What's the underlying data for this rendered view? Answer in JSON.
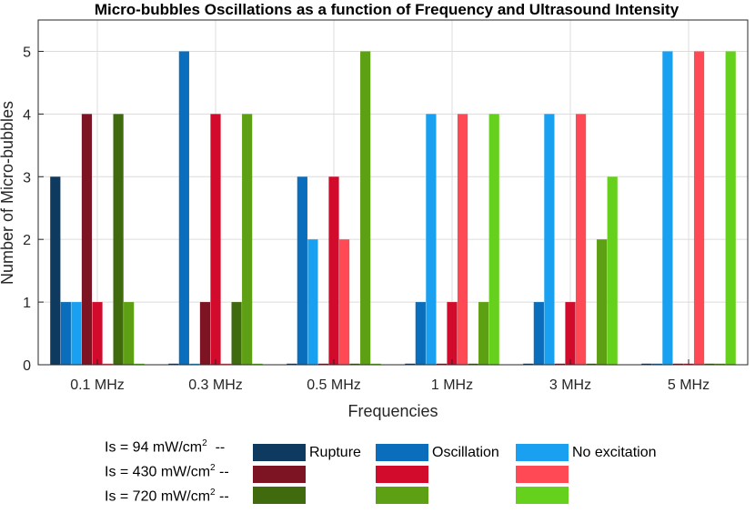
{
  "chart_data": {
    "type": "bar",
    "title": "Micro-bubbles Oscillations as a function of Frequency and Ultrasound Intensity",
    "xlabel": "Frequencies",
    "ylabel": "Number of Micro-bubbles",
    "ylim": [
      0,
      5.5
    ],
    "yticks": [
      "0",
      "1",
      "2",
      "3",
      "4",
      "5"
    ],
    "grid": true,
    "categories": [
      "0.1 MHz",
      "0.3 MHz",
      "0.5 MHz",
      "1 MHz",
      "3 MHz",
      "5 MHz"
    ],
    "series": [
      {
        "name": "94 Rupture",
        "color": "#0d3a5e",
        "values": [
          3,
          0,
          0,
          0,
          0,
          0
        ]
      },
      {
        "name": "94 Oscillation",
        "color": "#0a6ebd",
        "values": [
          1,
          5,
          3,
          1,
          1,
          0
        ]
      },
      {
        "name": "94 No excitation",
        "color": "#1aa0f0",
        "values": [
          1,
          0,
          2,
          4,
          4,
          5
        ]
      },
      {
        "name": "430 Rupture",
        "color": "#7d1423",
        "values": [
          4,
          1,
          0,
          0,
          0,
          0
        ]
      },
      {
        "name": "430 Oscillation",
        "color": "#d20a2b",
        "values": [
          1,
          4,
          3,
          1,
          1,
          0
        ]
      },
      {
        "name": "430 No excitation",
        "color": "#ff4a55",
        "values": [
          0,
          0,
          2,
          4,
          4,
          5
        ]
      },
      {
        "name": "720 Rupture",
        "color": "#3f6a0e",
        "values": [
          4,
          1,
          0,
          0,
          0,
          0
        ]
      },
      {
        "name": "720 Oscillation",
        "color": "#5ea013",
        "values": [
          1,
          4,
          5,
          1,
          2,
          0
        ]
      },
      {
        "name": "720 No excitation",
        "color": "#66d11c",
        "values": [
          0,
          0,
          0,
          4,
          3,
          5
        ]
      }
    ]
  },
  "legend": {
    "rows": [
      {
        "prefix": "Is = 94 mW/cm",
        "exp": "2",
        "suffix": "  --"
      },
      {
        "prefix": "Is = 430 mW/cm",
        "exp": "2",
        "suffix": " --"
      },
      {
        "prefix": "Is = 720 mW/cm",
        "exp": "2",
        "suffix": " --"
      }
    ],
    "columns": [
      "Rupture",
      "Oscillation",
      "No excitation"
    ]
  }
}
